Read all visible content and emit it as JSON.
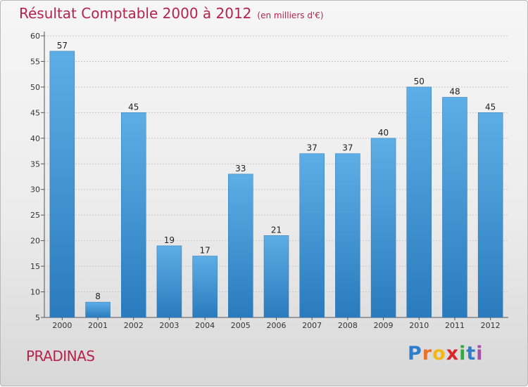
{
  "title": "Résultat Comptable 2000 à 2012",
  "subtitle": "(en milliers d'€)",
  "place": "PRADINAS",
  "logo": {
    "letters": [
      {
        "ch": "P",
        "color": "#2e7ec9"
      },
      {
        "ch": "r",
        "color": "#e8712b"
      },
      {
        "ch": "o",
        "color": "#f2b81a"
      },
      {
        "ch": "x",
        "color": "#d9262b"
      },
      {
        "ch": "i",
        "color": "#3aa544"
      },
      {
        "ch": "t",
        "color": "#2e7ec9"
      },
      {
        "ch": "i",
        "color": "#a64fa6"
      }
    ]
  },
  "colors": {
    "accent": "#b5234c",
    "bar_top": "#5daee6",
    "bar_bottom": "#2a7bbd",
    "grid": "#c8c8c8"
  },
  "chart_data": {
    "type": "bar",
    "categories": [
      "2000",
      "2001",
      "2002",
      "2003",
      "2004",
      "2005",
      "2006",
      "2007",
      "2008",
      "2009",
      "2010",
      "2011",
      "2012"
    ],
    "values": [
      57,
      8,
      45,
      19,
      17,
      33,
      21,
      37,
      37,
      40,
      50,
      48,
      45
    ],
    "ylim": [
      5,
      60
    ],
    "yticks": [
      5,
      10,
      15,
      20,
      25,
      30,
      35,
      40,
      45,
      50,
      55,
      60
    ],
    "grid": true,
    "data_labels": true
  }
}
